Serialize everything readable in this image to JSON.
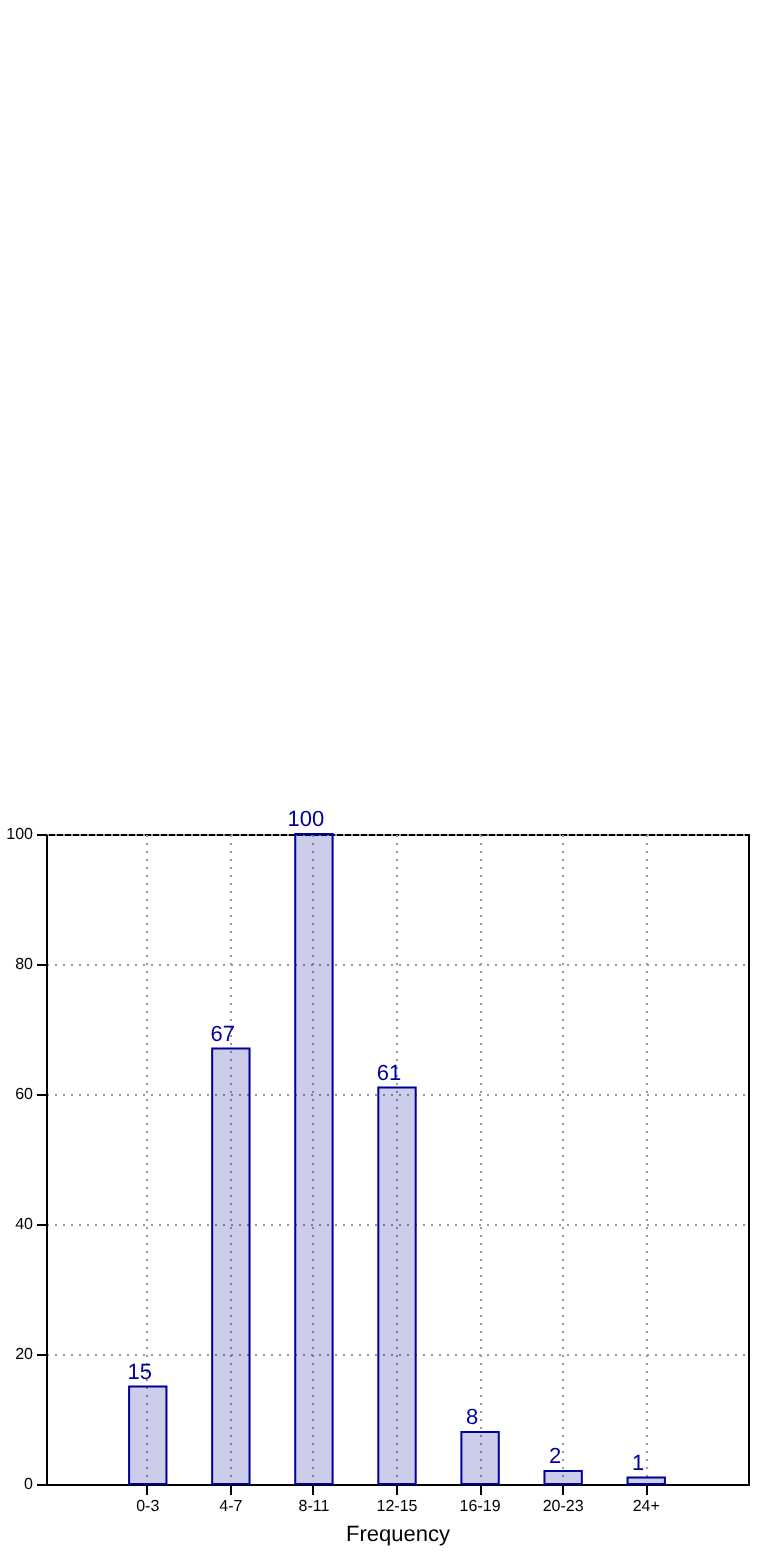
{
  "chart_data": {
    "type": "bar",
    "xlabel": "Frequency",
    "categories": [
      "0-3",
      "4-7",
      "8-11",
      "12-15",
      "16-19",
      "20-23",
      "24+"
    ],
    "values": [
      15,
      67,
      100,
      61,
      8,
      2,
      1
    ],
    "color": "#00009c",
    "ylim": [
      0,
      100
    ],
    "yticks": [
      0,
      20,
      40,
      60,
      80,
      100
    ],
    "grid": true,
    "data_labels": true
  }
}
